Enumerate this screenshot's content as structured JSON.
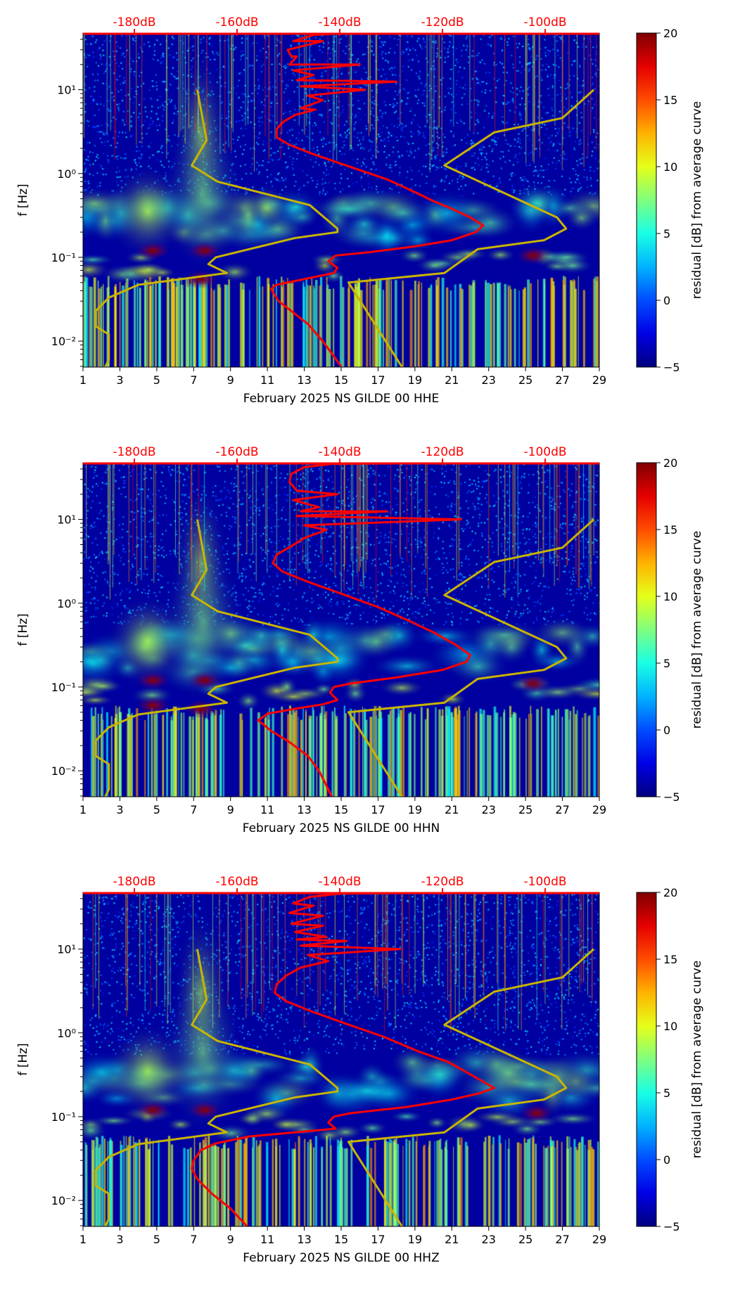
{
  "chart_data": [
    {
      "type": "heatmap",
      "xlabel": "February 2025 NS GILDE 00 HHE",
      "ylabel": "f [Hz]",
      "colorbar_label": "residual [dB] from average curve",
      "x_ticks": [
        "1",
        "3",
        "5",
        "7",
        "9",
        "11",
        "13",
        "15",
        "17",
        "19",
        "21",
        "23",
        "25",
        "27",
        "29"
      ],
      "xlim": [
        1,
        29
      ],
      "y_scale": "log",
      "ylim": [
        0.0049,
        47.5
      ],
      "y_ticks": [
        {
          "v": 10,
          "label": "10¹"
        },
        {
          "v": 1,
          "label": "10⁰"
        },
        {
          "v": 0.1,
          "label": "10⁻¹"
        },
        {
          "v": 0.01,
          "label": "10⁻²"
        }
      ],
      "top_axis": {
        "ticks": [
          {
            "db": -180,
            "label": "-180dB"
          },
          {
            "db": -160,
            "label": "-160dB"
          },
          {
            "db": -140,
            "label": "-140dB"
          },
          {
            "db": -120,
            "label": "-120dB"
          },
          {
            "db": -100,
            "label": "-100dB"
          }
        ],
        "db_at_day_1": -190.0,
        "days_per_20db": 5.57,
        "color": "#ff0000"
      },
      "colorbar": {
        "range": [
          -5,
          20
        ],
        "ticks": [
          "20",
          "15",
          "10",
          "5",
          "0",
          "−5"
        ]
      },
      "hot_spots": [
        {
          "day": 4.8,
          "f": 0.12
        },
        {
          "day": 7.6,
          "f": 0.12
        },
        {
          "day": 7.4,
          "f": 0.055
        },
        {
          "day": 25.4,
          "f": 0.105
        }
      ],
      "red_curve_day_f": [
        [
          26.5,
          48
        ],
        [
          15,
          47
        ],
        [
          13.5,
          45
        ],
        [
          12.4,
          38
        ],
        [
          14,
          38
        ],
        [
          12.1,
          30
        ],
        [
          12.3,
          25
        ],
        [
          12.6,
          25
        ],
        [
          12.2,
          20
        ],
        [
          16,
          20
        ],
        [
          12.4,
          17
        ],
        [
          13.5,
          15
        ],
        [
          12.6,
          13
        ],
        [
          18,
          12.5
        ],
        [
          12.8,
          11
        ],
        [
          16.3,
          10
        ],
        [
          13.2,
          8.5
        ],
        [
          14,
          7.5
        ],
        [
          12.8,
          6
        ],
        [
          13.6,
          5.8
        ],
        [
          12.5,
          5
        ],
        [
          11.9,
          4.2
        ],
        [
          11.5,
          3.4
        ],
        [
          11.5,
          2.7
        ],
        [
          12.2,
          2.2
        ],
        [
          13.5,
          1.7
        ],
        [
          15.5,
          1.2
        ],
        [
          17.5,
          0.85
        ],
        [
          19,
          0.6
        ],
        [
          20,
          0.47
        ],
        [
          21,
          0.38
        ],
        [
          22,
          0.3
        ],
        [
          22.7,
          0.24
        ],
        [
          22.3,
          0.2
        ],
        [
          21,
          0.16
        ],
        [
          19,
          0.135
        ],
        [
          16.5,
          0.115
        ],
        [
          14.7,
          0.105
        ],
        [
          14.3,
          0.09
        ],
        [
          14.8,
          0.075
        ],
        [
          14.6,
          0.065
        ],
        [
          13,
          0.055
        ],
        [
          11.5,
          0.047
        ],
        [
          11.2,
          0.042
        ],
        [
          11.6,
          0.03
        ],
        [
          12.4,
          0.022
        ],
        [
          13.2,
          0.016
        ],
        [
          14,
          0.01
        ],
        [
          15,
          0.005
        ]
      ],
      "nlnm_day_f": [
        [
          7.2,
          10
        ],
        [
          7.7,
          2.5
        ],
        [
          6.9,
          1.25
        ],
        [
          8.3,
          0.8
        ],
        [
          13.3,
          0.42
        ],
        [
          14.8,
          0.22
        ],
        [
          14.8,
          0.2
        ],
        [
          12.5,
          0.17
        ],
        [
          8.2,
          0.1
        ],
        [
          7.8,
          0.083
        ],
        [
          8.8,
          0.065
        ],
        [
          4,
          0.047
        ],
        [
          2.4,
          0.033
        ],
        [
          1.7,
          0.023
        ],
        [
          1.7,
          0.015
        ],
        [
          2.4,
          0.012
        ],
        [
          2.4,
          0.006
        ],
        [
          2.2,
          0.0049
        ]
      ],
      "nhnm_day_f": [
        [
          28.7,
          10
        ],
        [
          27,
          4.6
        ],
        [
          23.3,
          3.1
        ],
        [
          20.6,
          1.25
        ],
        [
          26.7,
          0.3
        ],
        [
          27.2,
          0.22
        ],
        [
          26,
          0.16
        ],
        [
          22.4,
          0.125
        ],
        [
          20.6,
          0.065
        ],
        [
          15.4,
          0.05
        ],
        [
          18.3,
          0.0049
        ]
      ]
    },
    {
      "type": "heatmap",
      "xlabel": "February 2025 NS GILDE 00 HHN",
      "ylabel": "f [Hz]",
      "colorbar_label": "residual [dB] from average curve",
      "x_ticks": [
        "1",
        "3",
        "5",
        "7",
        "9",
        "11",
        "13",
        "15",
        "17",
        "19",
        "21",
        "23",
        "25",
        "27",
        "29"
      ],
      "xlim": [
        1,
        29
      ],
      "y_scale": "log",
      "ylim": [
        0.0049,
        47.5
      ],
      "y_ticks": [
        {
          "v": 10,
          "label": "10¹"
        },
        {
          "v": 1,
          "label": "10⁰"
        },
        {
          "v": 0.1,
          "label": "10⁻¹"
        },
        {
          "v": 0.01,
          "label": "10⁻²"
        }
      ],
      "top_axis": {
        "ticks": [
          {
            "db": -180,
            "label": "-180dB"
          },
          {
            "db": -160,
            "label": "-160dB"
          },
          {
            "db": -140,
            "label": "-140dB"
          },
          {
            "db": -120,
            "label": "-120dB"
          },
          {
            "db": -100,
            "label": "-100dB"
          }
        ],
        "db_at_day_1": -190.0,
        "days_per_20db": 5.57,
        "color": "#ff0000"
      },
      "colorbar": {
        "range": [
          -5,
          20
        ],
        "ticks": [
          "20",
          "15",
          "10",
          "5",
          "0",
          "−5"
        ]
      },
      "hot_spots": [
        {
          "day": 4.8,
          "f": 0.12
        },
        {
          "day": 7.6,
          "f": 0.12
        },
        {
          "day": 7.4,
          "f": 0.055
        },
        {
          "day": 4.8,
          "f": 0.06
        },
        {
          "day": 25.4,
          "f": 0.11
        }
      ],
      "red_curve_day_f": [
        [
          26.5,
          48
        ],
        [
          14.5,
          46
        ],
        [
          13,
          42
        ],
        [
          12.3,
          35
        ],
        [
          12.2,
          28
        ],
        [
          12.6,
          22
        ],
        [
          14.8,
          20
        ],
        [
          12.4,
          17
        ],
        [
          13.8,
          14
        ],
        [
          12.8,
          12.5
        ],
        [
          17.5,
          12.5
        ],
        [
          12.6,
          11
        ],
        [
          21.5,
          10
        ],
        [
          13,
          8.5
        ],
        [
          14.2,
          7.5
        ],
        [
          13,
          6
        ],
        [
          12.3,
          4.8
        ],
        [
          11.5,
          3.8
        ],
        [
          11.3,
          3
        ],
        [
          11.8,
          2.4
        ],
        [
          13.2,
          1.8
        ],
        [
          15,
          1.3
        ],
        [
          17,
          0.9
        ],
        [
          18.8,
          0.6
        ],
        [
          20,
          0.45
        ],
        [
          21.2,
          0.32
        ],
        [
          22,
          0.24
        ],
        [
          21.8,
          0.2
        ],
        [
          20.5,
          0.16
        ],
        [
          18,
          0.13
        ],
        [
          15.5,
          0.11
        ],
        [
          14.6,
          0.1
        ],
        [
          14.4,
          0.085
        ],
        [
          14.8,
          0.07
        ],
        [
          14,
          0.062
        ],
        [
          12.5,
          0.055
        ],
        [
          11,
          0.048
        ],
        [
          10.5,
          0.04
        ],
        [
          11.2,
          0.03
        ],
        [
          12.2,
          0.022
        ],
        [
          13.2,
          0.015
        ],
        [
          13.8,
          0.01
        ],
        [
          14.5,
          0.0049
        ]
      ],
      "nlnm_day_f": [
        [
          7.2,
          10
        ],
        [
          7.7,
          2.5
        ],
        [
          6.9,
          1.25
        ],
        [
          8.3,
          0.8
        ],
        [
          13.3,
          0.42
        ],
        [
          14.8,
          0.22
        ],
        [
          14.8,
          0.2
        ],
        [
          12.5,
          0.17
        ],
        [
          8.2,
          0.1
        ],
        [
          7.8,
          0.083
        ],
        [
          8.8,
          0.065
        ],
        [
          4,
          0.047
        ],
        [
          2.4,
          0.033
        ],
        [
          1.7,
          0.023
        ],
        [
          1.7,
          0.015
        ],
        [
          2.4,
          0.012
        ],
        [
          2.4,
          0.006
        ],
        [
          2.2,
          0.0049
        ]
      ],
      "nhnm_day_f": [
        [
          28.7,
          10
        ],
        [
          27,
          4.6
        ],
        [
          23.3,
          3.1
        ],
        [
          20.6,
          1.25
        ],
        [
          26.7,
          0.3
        ],
        [
          27.2,
          0.22
        ],
        [
          26,
          0.16
        ],
        [
          22.4,
          0.125
        ],
        [
          20.6,
          0.065
        ],
        [
          15.4,
          0.05
        ],
        [
          18.3,
          0.0049
        ]
      ]
    },
    {
      "type": "heatmap",
      "xlabel": "February 2025 NS GILDE 00 HHZ",
      "ylabel": "f [Hz]",
      "colorbar_label": "residual [dB] from average curve",
      "x_ticks": [
        "1",
        "3",
        "5",
        "7",
        "9",
        "11",
        "13",
        "15",
        "17",
        "19",
        "21",
        "23",
        "25",
        "27",
        "29"
      ],
      "xlim": [
        1,
        29
      ],
      "y_scale": "log",
      "ylim": [
        0.0049,
        47.5
      ],
      "y_ticks": [
        {
          "v": 10,
          "label": "10¹"
        },
        {
          "v": 1,
          "label": "10⁰"
        },
        {
          "v": 0.1,
          "label": "10⁻¹"
        },
        {
          "v": 0.01,
          "label": "10⁻²"
        }
      ],
      "top_axis": {
        "ticks": [
          {
            "db": -180,
            "label": "-180dB"
          },
          {
            "db": -160,
            "label": "-160dB"
          },
          {
            "db": -140,
            "label": "-140dB"
          },
          {
            "db": -120,
            "label": "-120dB"
          },
          {
            "db": -100,
            "label": "-100dB"
          }
        ],
        "db_at_day_1": -190.0,
        "days_per_20db": 5.57,
        "color": "#ff0000"
      },
      "colorbar": {
        "range": [
          -5,
          20
        ],
        "ticks": [
          "20",
          "15",
          "10",
          "5",
          "0",
          "−5"
        ]
      },
      "hot_spots": [
        {
          "day": 4.8,
          "f": 0.12
        },
        {
          "day": 7.6,
          "f": 0.12
        },
        {
          "day": 25.6,
          "f": 0.11
        }
      ],
      "red_curve_day_f": [
        [
          26.5,
          48
        ],
        [
          15,
          46
        ],
        [
          13.3,
          42
        ],
        [
          12.4,
          35
        ],
        [
          13.5,
          33
        ],
        [
          12.2,
          27
        ],
        [
          14,
          25
        ],
        [
          12.3,
          20
        ],
        [
          14,
          19
        ],
        [
          12.5,
          16
        ],
        [
          14.2,
          14
        ],
        [
          12.6,
          13
        ],
        [
          15.3,
          12.5
        ],
        [
          12.8,
          11
        ],
        [
          18.2,
          10
        ],
        [
          13.2,
          8.5
        ],
        [
          14.3,
          7.2
        ],
        [
          12.8,
          6
        ],
        [
          12,
          4.8
        ],
        [
          11.5,
          3.8
        ],
        [
          11.4,
          3
        ],
        [
          12,
          2.4
        ],
        [
          13.4,
          1.8
        ],
        [
          15.2,
          1.3
        ],
        [
          17.3,
          0.9
        ],
        [
          19.2,
          0.6
        ],
        [
          20.8,
          0.45
        ],
        [
          22,
          0.32
        ],
        [
          23.3,
          0.22
        ],
        [
          22.5,
          0.19
        ],
        [
          21,
          0.16
        ],
        [
          18.5,
          0.13
        ],
        [
          15.5,
          0.11
        ],
        [
          14.6,
          0.1
        ],
        [
          14.3,
          0.085
        ],
        [
          14.7,
          0.072
        ],
        [
          12.5,
          0.065
        ],
        [
          10,
          0.058
        ],
        [
          8.2,
          0.048
        ],
        [
          7.4,
          0.04
        ],
        [
          7,
          0.03
        ],
        [
          6.9,
          0.024
        ],
        [
          7.2,
          0.018
        ],
        [
          8,
          0.012
        ],
        [
          9,
          0.008
        ],
        [
          9.9,
          0.0049
        ]
      ],
      "nlnm_day_f": [
        [
          7.2,
          10
        ],
        [
          7.7,
          2.5
        ],
        [
          6.9,
          1.25
        ],
        [
          8.3,
          0.8
        ],
        [
          13.3,
          0.42
        ],
        [
          14.8,
          0.22
        ],
        [
          14.8,
          0.2
        ],
        [
          12.5,
          0.17
        ],
        [
          8.2,
          0.1
        ],
        [
          7.8,
          0.083
        ],
        [
          8.8,
          0.065
        ],
        [
          4,
          0.047
        ],
        [
          2.4,
          0.033
        ],
        [
          1.7,
          0.023
        ],
        [
          1.7,
          0.015
        ],
        [
          2.4,
          0.012
        ],
        [
          2.4,
          0.006
        ],
        [
          2.2,
          0.0049
        ]
      ],
      "nhnm_day_f": [
        [
          28.7,
          10
        ],
        [
          27,
          4.6
        ],
        [
          23.3,
          3.1
        ],
        [
          20.6,
          1.25
        ],
        [
          26.7,
          0.3
        ],
        [
          27.2,
          0.22
        ],
        [
          26,
          0.16
        ],
        [
          22.4,
          0.125
        ],
        [
          20.6,
          0.065
        ],
        [
          15.4,
          0.05
        ],
        [
          18.3,
          0.0049
        ]
      ]
    }
  ],
  "colors": {
    "red_curve": "#ff0000",
    "model_curves": "#c8b400",
    "background": "#00007f"
  }
}
